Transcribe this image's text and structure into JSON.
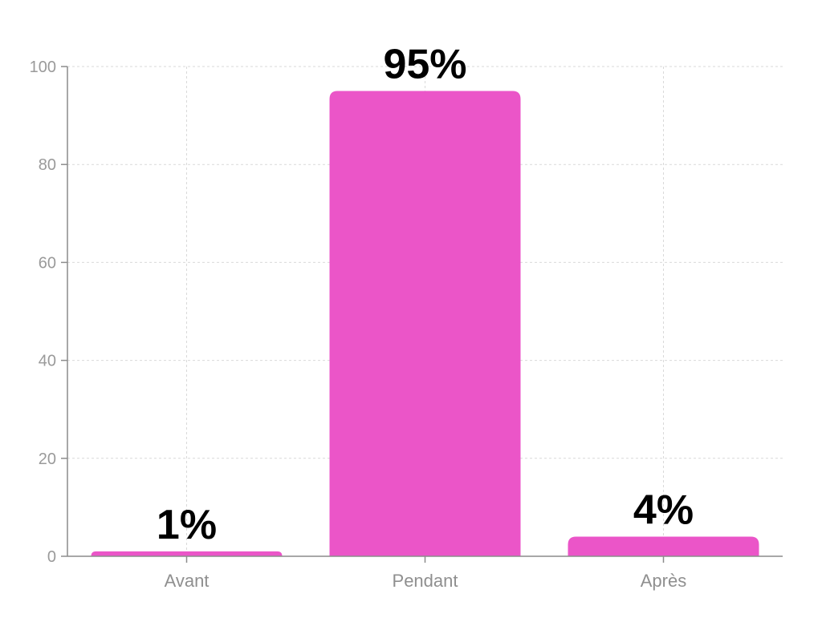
{
  "chart_data": {
    "type": "bar",
    "categories": [
      "Avant",
      "Pendant",
      "Après"
    ],
    "values": [
      1,
      95,
      4
    ],
    "data_labels": [
      "1%",
      "95%",
      "4%"
    ],
    "yticks": [
      0,
      20,
      40,
      60,
      80,
      100
    ],
    "ylim": [
      0,
      100
    ],
    "grid": true,
    "bar_color": "#eb55c8"
  }
}
